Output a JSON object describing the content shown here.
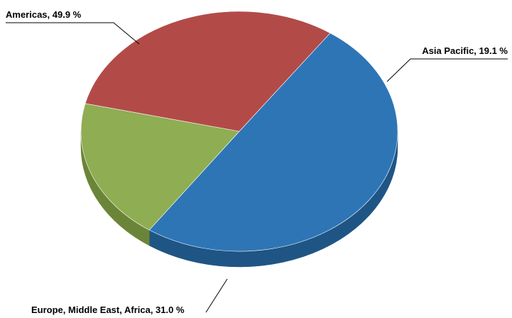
{
  "chart_data": {
    "type": "pie",
    "title": "",
    "slices": [
      {
        "label": "Americas",
        "value": 49.9,
        "label_text": "Americas, 49.9 %",
        "color": "#2E75B6",
        "side_color": "#1F5585"
      },
      {
        "label": "Asia Pacific",
        "value": 19.1,
        "label_text": "Asia Pacific, 19.1 %",
        "color": "#8FAD52",
        "side_color": "#6B8538"
      },
      {
        "label": "Europe, Middle East, Africa",
        "value": 31.0,
        "label_text": "Europe, Middle East, Africa, 31.0 %",
        "color": "#B24B48",
        "side_color": "#85302E"
      }
    ],
    "unit": "%",
    "style": "3d"
  }
}
